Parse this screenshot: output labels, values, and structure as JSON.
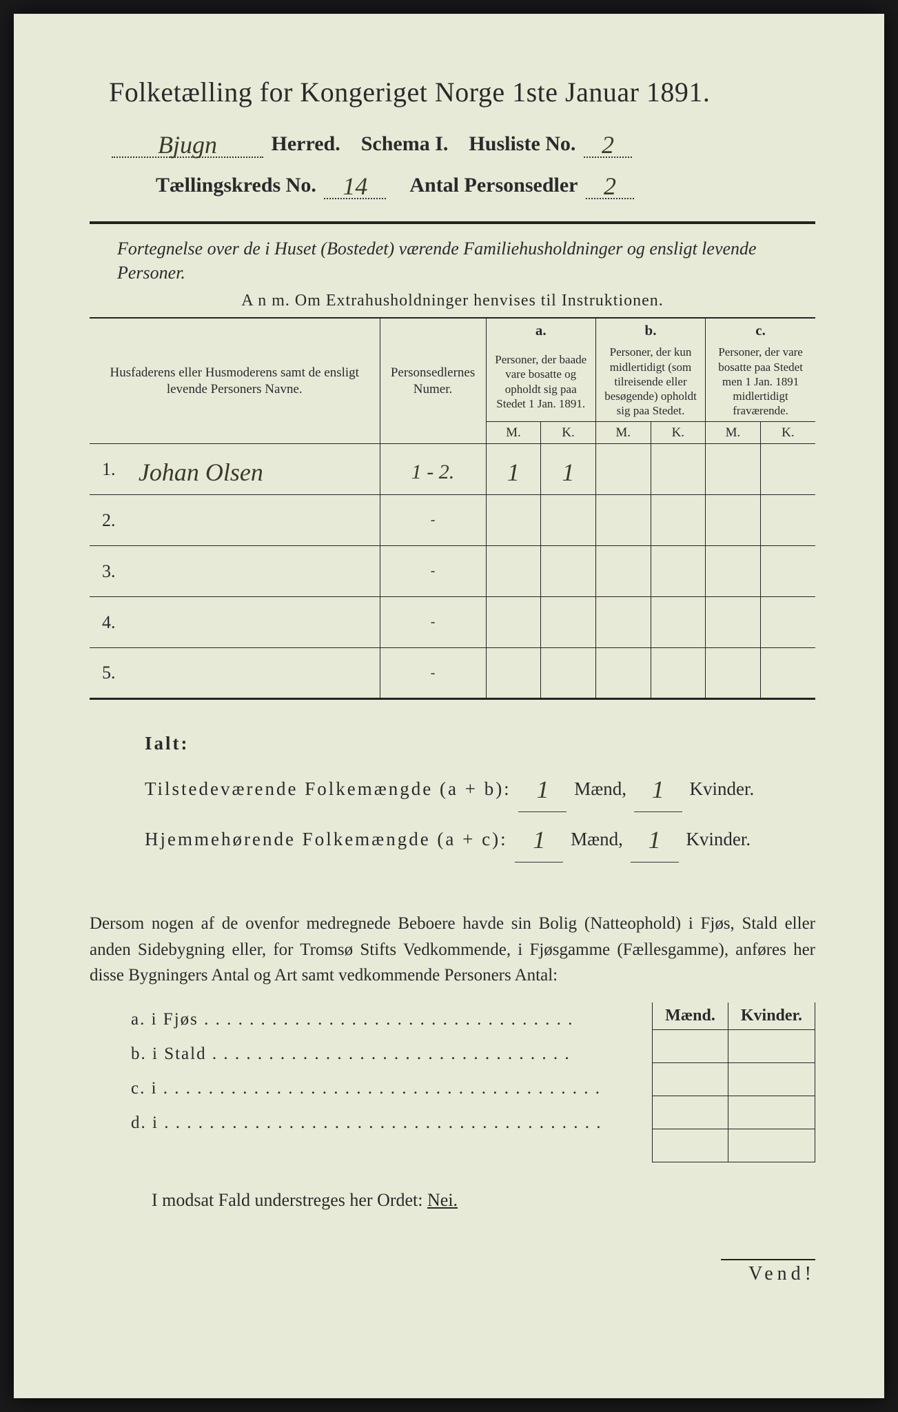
{
  "header": {
    "title": "Folketælling for Kongeriget Norge 1ste Januar 1891.",
    "herred_hand": "Bjugn",
    "herred_label": "Herred.",
    "schema": "Schema I.",
    "husliste_label": "Husliste No.",
    "husliste_no": "2",
    "tkreds_label": "Tællingskreds No.",
    "tkreds_no": "14",
    "antal_label": "Antal Personsedler",
    "antal_no": "2"
  },
  "subtitle": "Fortegnelse over de i Huset (Bostedet) værende Familiehusholdninger og ensligt levende Personer.",
  "anm": "A n m.   Om Extrahusholdninger henvises til Instruktionen.",
  "table": {
    "col_name": "Husfaderens eller Husmoderens samt de ensligt levende Personers Navne.",
    "col_psn": "Personsedlernes Numer.",
    "a_label": "a.",
    "a_text": "Personer, der baade vare bosatte og opholdt sig paa Stedet 1 Jan. 1891.",
    "b_label": "b.",
    "b_text": "Personer, der kun midlertidigt (som tilreisende eller besøgende) opholdt sig paa Stedet.",
    "c_label": "c.",
    "c_text": "Personer, der vare bosatte paa Stedet men 1 Jan. 1891 midlertidigt fraværende.",
    "mk_m": "M.",
    "mk_k": "K.",
    "rows": [
      {
        "n": "1.",
        "name": "Johan Olsen",
        "psn": "1 - 2.",
        "am": "1",
        "ak": "1",
        "bm": "",
        "bk": "",
        "cm": "",
        "ck": ""
      },
      {
        "n": "2.",
        "name": "",
        "psn": "-",
        "am": "",
        "ak": "",
        "bm": "",
        "bk": "",
        "cm": "",
        "ck": ""
      },
      {
        "n": "3.",
        "name": "",
        "psn": "-",
        "am": "",
        "ak": "",
        "bm": "",
        "bk": "",
        "cm": "",
        "ck": ""
      },
      {
        "n": "4.",
        "name": "",
        "psn": "-",
        "am": "",
        "ak": "",
        "bm": "",
        "bk": "",
        "cm": "",
        "ck": ""
      },
      {
        "n": "5.",
        "name": "",
        "psn": "-",
        "am": "",
        "ak": "",
        "bm": "",
        "bk": "",
        "cm": "",
        "ck": ""
      }
    ]
  },
  "ialt": {
    "ialt": "Ialt:",
    "line1_a": "Tilstedeværende Folkemængde (a + b):",
    "line2_a": "Hjemmehørende Folkemængde (a + c):",
    "maend": "Mænd,",
    "kvinder": "Kvinder.",
    "v1m": "1",
    "v1k": "1",
    "v2m": "1",
    "v2k": "1"
  },
  "para": "Dersom nogen af de ovenfor medregnede Beboere havde sin Bolig (Natteophold) i Fjøs, Stald eller anden Sidebygning eller, for Tromsø Stifts Vedkommende, i Fjøsgamme (Fællesgamme), anføres her disse Bygningers Antal og Art samt vedkommende Personers Antal:",
  "mk": {
    "maend": "Mænd.",
    "kvinder": "Kvinder.",
    "rows": [
      "a.   i      Fjøs . . . . . . . . . . . . . . . . . . . . . . . . . . . . . . . . .",
      "b.   i      Stald . . . . . . . . . . . . . . . . . . . . . . . . . . . . . . . .",
      "c.   i . . . . . . . . . . . . . . . . . . . . . . . . . . . . . . . . . . . . . . .",
      "d.   i . . . . . . . . . . . . . . . . . . . . . . . . . . . . . . . . . . . . . . ."
    ]
  },
  "nei": {
    "text": "I modsat Fald understreges her Ordet:",
    "word": "Nei."
  },
  "vend": "Vend!",
  "style": {
    "paper_bg": "#e8ead8",
    "ink": "#2a2a2a",
    "hand_ink": "#3a3a2a",
    "title_fontsize": 40,
    "body_fontsize": 25
  }
}
